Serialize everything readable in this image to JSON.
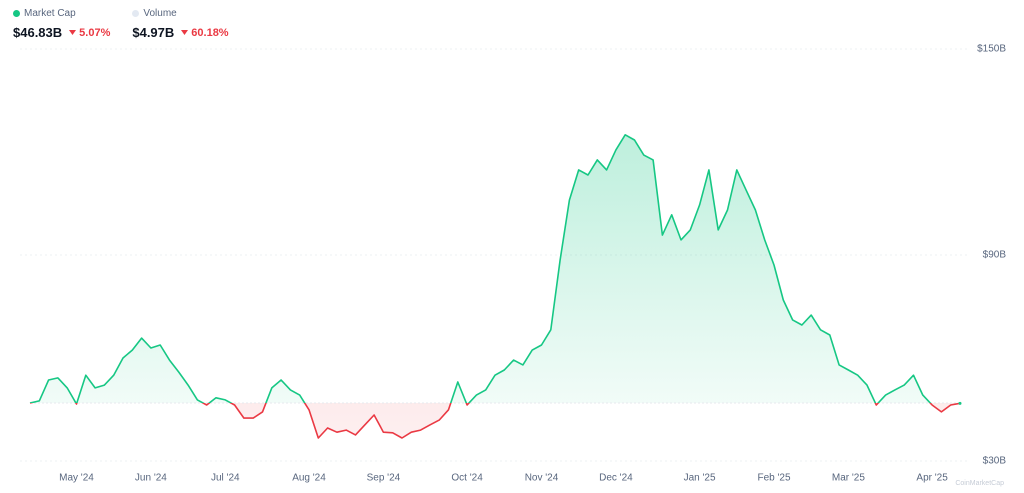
{
  "chart_data": {
    "type": "baseline-area",
    "stats": [
      {
        "name": "Market Cap",
        "color": "#16c784",
        "value": "$46.83B",
        "change": "5.07%"
      },
      {
        "name": "Volume",
        "color": "#e3e9f2",
        "value": "$4.97B",
        "change": "60.18%"
      }
    ],
    "watermark": "CoinMarketCap",
    "up_color": "#16c784",
    "down_color": "#ea3943",
    "categories": [
      null,
      null,
      null,
      null,
      null,
      "May '24",
      null,
      null,
      null,
      null,
      null,
      null,
      null,
      "Jun '24",
      null,
      null,
      null,
      null,
      null,
      null,
      null,
      "Jul '24",
      null,
      null,
      null,
      null,
      null,
      null,
      null,
      null,
      "Aug '24",
      null,
      null,
      null,
      null,
      null,
      null,
      null,
      "Sep '24",
      null,
      null,
      null,
      null,
      null,
      null,
      null,
      null,
      "Oct '24",
      null,
      null,
      null,
      null,
      null,
      null,
      null,
      "Nov '24",
      null,
      null,
      null,
      null,
      null,
      null,
      null,
      "Dec '24",
      null,
      null,
      null,
      null,
      null,
      null,
      null,
      null,
      "Jan '25",
      null,
      null,
      null,
      null,
      null,
      null,
      null,
      "Feb '25",
      null,
      null,
      null,
      null,
      null,
      null,
      null,
      "Mar '25",
      null,
      null,
      null,
      null,
      null,
      null,
      null,
      null,
      "Apr '25",
      null,
      null,
      null
    ],
    "series": [
      {
        "values": [
          46.9,
          47.5,
          53.6,
          54.2,
          51.3,
          46.6,
          55.0,
          51.3,
          52.1,
          55.0,
          60.0,
          62.3,
          65.8,
          62.9,
          63.8,
          59.4,
          55.9,
          52.1,
          47.8,
          46.3,
          48.4,
          47.8,
          46.3,
          42.5,
          42.5,
          44.3,
          51.3,
          53.6,
          50.7,
          49.2,
          44.9,
          36.7,
          39.6,
          38.4,
          39.0,
          37.6,
          40.5,
          43.4,
          38.4,
          38.2,
          36.7,
          38.4,
          39.0,
          40.5,
          41.9,
          44.9,
          53.0,
          46.3,
          49.2,
          50.7,
          55.0,
          56.5,
          59.4,
          58.0,
          62.3,
          63.8,
          68.2,
          88.5,
          106.0,
          114.8,
          113.3,
          117.7,
          114.8,
          120.6,
          125.0,
          123.5,
          119.1,
          117.7,
          95.8,
          101.7,
          94.4,
          97.3,
          104.6,
          114.8,
          97.3,
          103.1,
          114.8,
          108.9,
          103.1,
          94.4,
          87.1,
          76.9,
          71.1,
          69.6,
          72.5,
          68.2,
          66.7,
          58.0,
          56.5,
          55.0,
          52.1,
          46.3,
          49.2,
          50.7,
          52.1,
          55.0,
          49.2,
          46.3,
          44.3,
          46.3,
          46.8
        ]
      }
    ],
    "ylim": [
      30,
      150
    ],
    "yticks": [
      {
        "value": 150,
        "label": "$150B"
      },
      {
        "value": 90,
        "label": "$90B"
      },
      {
        "value": 30,
        "label": "$30B"
      }
    ],
    "grid": true
  }
}
